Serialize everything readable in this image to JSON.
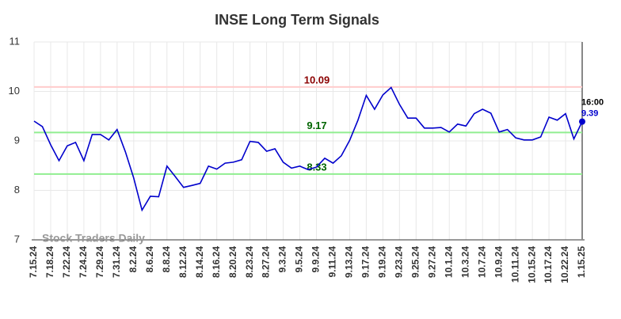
{
  "chart_data": {
    "type": "line",
    "title": "INSE Long Term Signals",
    "categories": [
      "7.15.24",
      null,
      "7.18.24",
      null,
      "7.22.24",
      null,
      "7.24.24",
      null,
      "7.29.24",
      null,
      "7.31.24",
      null,
      "8.2.24",
      null,
      "8.6.24",
      null,
      "8.8.24",
      null,
      "8.12.24",
      null,
      "8.14.24",
      null,
      "8.16.24",
      null,
      "8.20.24",
      null,
      "8.23.24",
      null,
      "8.27.24",
      null,
      "9.3.24",
      null,
      "9.5.24",
      null,
      "9.9.24",
      null,
      "9.11.24",
      null,
      "9.13.24",
      null,
      "9.17.24",
      null,
      "9.19.24",
      null,
      "9.23.24",
      null,
      "9.25.24",
      null,
      "9.27.24",
      null,
      "10.1.24",
      null,
      "10.3.24",
      null,
      "10.7.24",
      null,
      "10.9.24",
      null,
      "10.11.24",
      null,
      "10.15.24",
      null,
      "10.17.24",
      null,
      "10.22.24",
      null,
      "1.15.25"
    ],
    "series": [
      {
        "name": "INSE",
        "color": "#0000cc",
        "values": [
          9.4,
          9.29,
          8.92,
          8.6,
          8.9,
          8.97,
          8.6,
          9.13,
          9.13,
          9.02,
          9.23,
          8.78,
          8.25,
          7.6,
          7.88,
          7.87,
          8.49,
          8.28,
          8.06,
          8.1,
          8.14,
          8.49,
          8.43,
          8.55,
          8.57,
          8.62,
          8.99,
          8.97,
          8.79,
          8.84,
          8.57,
          8.45,
          8.49,
          8.42,
          8.47,
          8.65,
          8.55,
          8.7,
          9.01,
          9.42,
          9.92,
          9.64,
          9.93,
          10.08,
          9.74,
          9.46,
          9.46,
          9.26,
          9.26,
          9.27,
          9.18,
          9.34,
          9.3,
          9.55,
          9.64,
          9.56,
          9.18,
          9.23,
          9.06,
          9.02,
          9.02,
          9.08,
          9.48,
          9.42,
          9.55,
          9.04,
          9.39
        ]
      }
    ],
    "hlines": [
      {
        "value": 10.09,
        "color": "#ffcccc",
        "label_color": "#8b0000"
      },
      {
        "value": 9.17,
        "color": "#90ee90",
        "label_color": "#006400"
      },
      {
        "value": 8.33,
        "color": "#90ee90",
        "label_color": "#006400"
      }
    ],
    "last_time": "16:00",
    "watermark": "Stock Traders Daily",
    "ylim": [
      7,
      11
    ],
    "yticks": [
      7,
      8,
      9,
      10,
      11
    ],
    "grid": true
  }
}
